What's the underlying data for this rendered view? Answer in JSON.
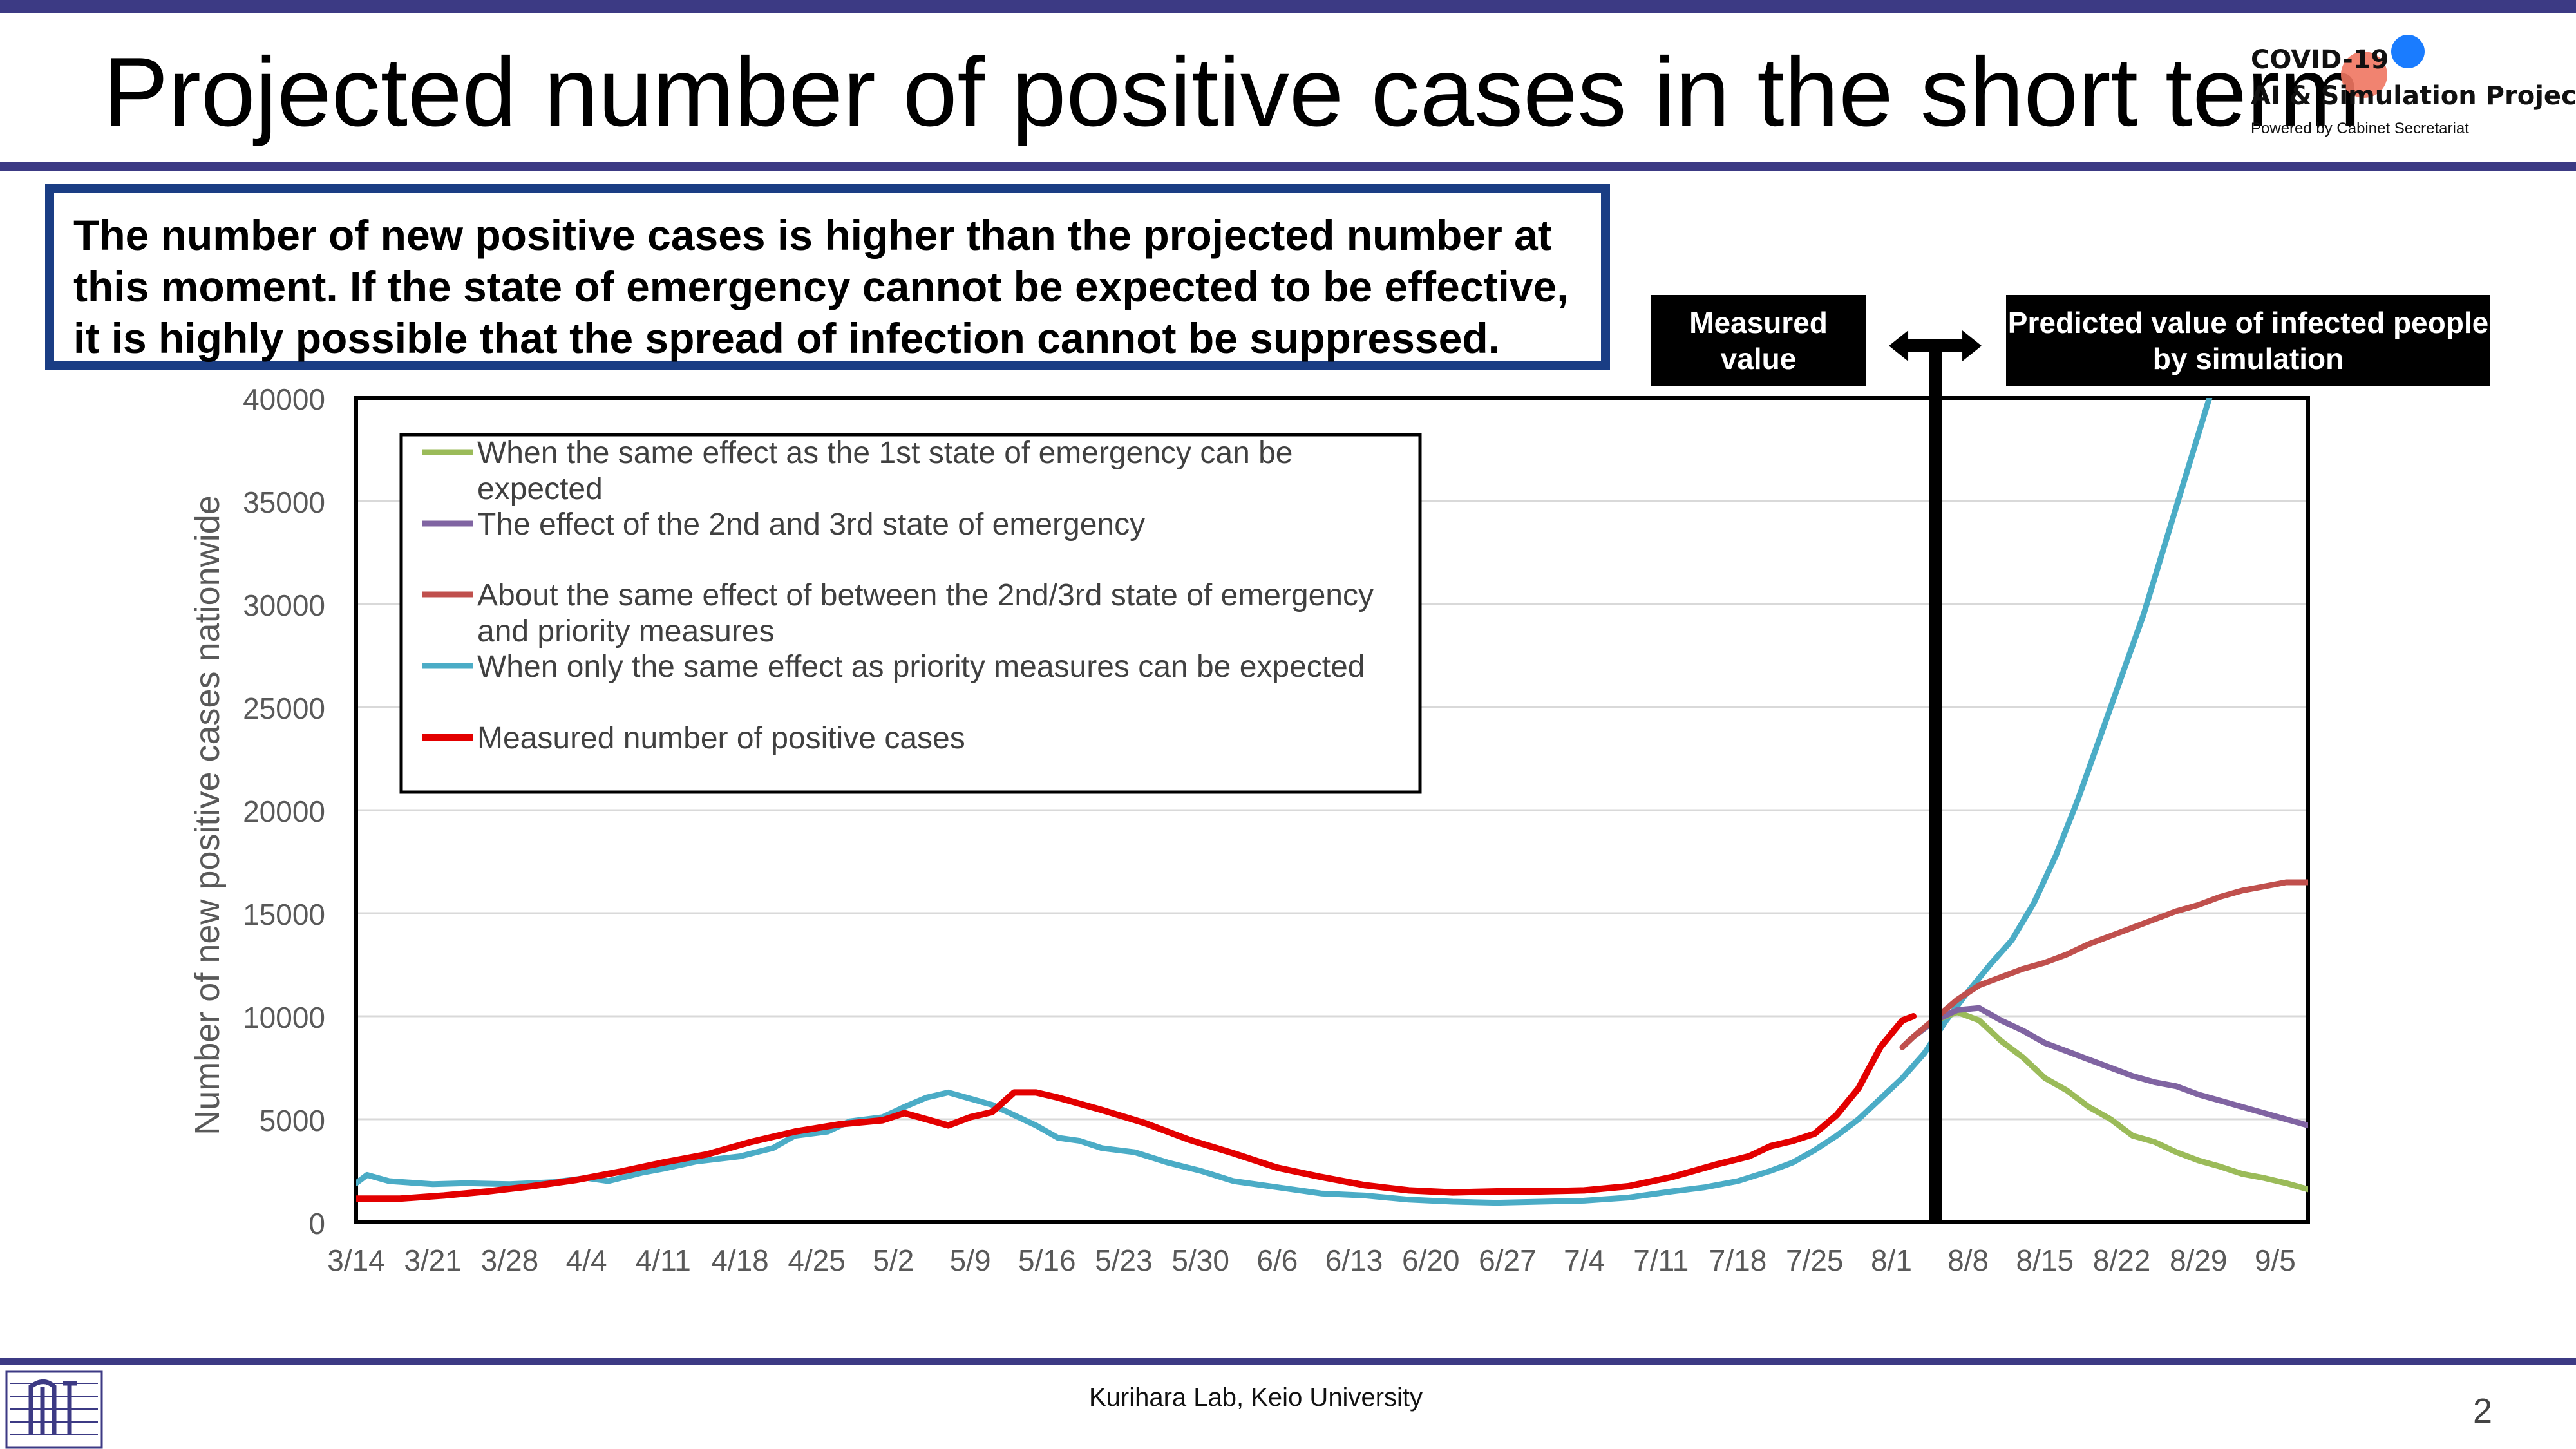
{
  "title": "Projected number of positive cases in the short term",
  "brand": {
    "line1": "COVID-19",
    "line2": "AI & Simulation Project",
    "line3": "Powered by Cabinet Secretariat"
  },
  "callout": "The number of new positive cases is higher than the projected number at this moment. If the state of emergency cannot be expected to be effective, it is highly possible that the spread of infection cannot be suppressed.",
  "measured_label": "Measured value",
  "predicted_label": "Predicted value of infected people by simulation",
  "footer": "Kurihara Lab, Keio University",
  "page_number": "2",
  "colors": {
    "title_rule": "#3c3a84",
    "callout_border": "#1a3d84",
    "green": "#9bbb59",
    "purple": "#8064a2",
    "brown": "#c0504d",
    "teal": "#4bacc6",
    "red": "#e30000"
  },
  "chart_data": {
    "type": "line",
    "xlabel": "",
    "ylabel": "Number of new positive cases nationwide",
    "ylim": [
      0,
      40000
    ],
    "yticks": [
      "0",
      "5000",
      "10000",
      "15000",
      "20000",
      "25000",
      "30000",
      "35000",
      "40000"
    ],
    "xlim_days": [
      0,
      178
    ],
    "xticks": [
      "3/14",
      "3/21",
      "3/28",
      "4/4",
      "4/11",
      "4/18",
      "4/25",
      "5/2",
      "5/9",
      "5/16",
      "5/23",
      "5/30",
      "6/6",
      "6/13",
      "6/20",
      "6/27",
      "7/4",
      "7/11",
      "7/18",
      "7/25",
      "8/1",
      "8/8",
      "8/15",
      "8/22",
      "8/29",
      "9/5"
    ],
    "grid": true,
    "legend_position": "top-left",
    "divider_x": "8/5",
    "series": [
      {
        "name": "When the same effect as the 1st state of emergency can be expected",
        "color": "green",
        "points": [
          [
            "8/2",
            8500
          ],
          [
            "8/3",
            9000
          ],
          [
            "8/5",
            9800
          ],
          [
            "8/7",
            10200
          ],
          [
            "8/9",
            9800
          ],
          [
            "8/11",
            8800
          ],
          [
            "8/13",
            8000
          ],
          [
            "8/15",
            7000
          ],
          [
            "8/17",
            6400
          ],
          [
            "8/19",
            5600
          ],
          [
            "8/21",
            5000
          ],
          [
            "8/23",
            4200
          ],
          [
            "8/25",
            3900
          ],
          [
            "8/27",
            3400
          ],
          [
            "8/29",
            3000
          ],
          [
            "8/31",
            2700
          ],
          [
            "9/2",
            2350
          ],
          [
            "9/4",
            2150
          ],
          [
            "9/6",
            1900
          ],
          [
            "9/8",
            1600
          ]
        ]
      },
      {
        "name": "The effect of the 2nd and 3rd state of emergency",
        "color": "purple",
        "points": [
          [
            "8/2",
            8500
          ],
          [
            "8/3",
            9000
          ],
          [
            "8/5",
            9800
          ],
          [
            "8/7",
            10300
          ],
          [
            "8/9",
            10400
          ],
          [
            "8/11",
            9800
          ],
          [
            "8/13",
            9300
          ],
          [
            "8/15",
            8700
          ],
          [
            "8/17",
            8300
          ],
          [
            "8/19",
            7900
          ],
          [
            "8/21",
            7500
          ],
          [
            "8/23",
            7100
          ],
          [
            "8/25",
            6800
          ],
          [
            "8/27",
            6600
          ],
          [
            "8/29",
            6200
          ],
          [
            "8/31",
            5900
          ],
          [
            "9/2",
            5600
          ],
          [
            "9/4",
            5300
          ],
          [
            "9/6",
            5000
          ],
          [
            "9/8",
            4700
          ]
        ]
      },
      {
        "name": "About the same effect of between the 2nd/3rd state of emergency and priority measures",
        "color": "brown",
        "points": [
          [
            "8/2",
            8500
          ],
          [
            "8/3",
            9000
          ],
          [
            "8/5",
            9900
          ],
          [
            "8/7",
            10800
          ],
          [
            "8/9",
            11500
          ],
          [
            "8/11",
            11900
          ],
          [
            "8/13",
            12300
          ],
          [
            "8/15",
            12600
          ],
          [
            "8/17",
            13000
          ],
          [
            "8/19",
            13500
          ],
          [
            "8/21",
            13900
          ],
          [
            "8/23",
            14300
          ],
          [
            "8/25",
            14700
          ],
          [
            "8/27",
            15100
          ],
          [
            "8/29",
            15400
          ],
          [
            "8/31",
            15800
          ],
          [
            "9/2",
            16100
          ],
          [
            "9/4",
            16300
          ],
          [
            "9/6",
            16500
          ],
          [
            "9/8",
            16500
          ]
        ]
      },
      {
        "name": "When only the same effect as priority measures can be expected",
        "color": "teal",
        "points": [
          [
            "3/14",
            1900
          ],
          [
            "3/15",
            2300
          ],
          [
            "3/17",
            2000
          ],
          [
            "3/21",
            1850
          ],
          [
            "3/24",
            1900
          ],
          [
            "3/28",
            1850
          ],
          [
            "4/1",
            1950
          ],
          [
            "4/4",
            2150
          ],
          [
            "4/6",
            2000
          ],
          [
            "4/9",
            2400
          ],
          [
            "4/11",
            2600
          ],
          [
            "4/14",
            2950
          ],
          [
            "4/18",
            3200
          ],
          [
            "4/21",
            3600
          ],
          [
            "4/23",
            4200
          ],
          [
            "4/26",
            4400
          ],
          [
            "4/28",
            4900
          ],
          [
            "5/1",
            5100
          ],
          [
            "5/3",
            5600
          ],
          [
            "5/5",
            6050
          ],
          [
            "5/7",
            6300
          ],
          [
            "5/9",
            6000
          ],
          [
            "5/11",
            5700
          ],
          [
            "5/13",
            5200
          ],
          [
            "5/15",
            4700
          ],
          [
            "5/17",
            4100
          ],
          [
            "5/19",
            3950
          ],
          [
            "5/21",
            3600
          ],
          [
            "5/24",
            3400
          ],
          [
            "5/27",
            2900
          ],
          [
            "5/30",
            2500
          ],
          [
            "6/2",
            2000
          ],
          [
            "6/6",
            1700
          ],
          [
            "6/10",
            1400
          ],
          [
            "6/14",
            1300
          ],
          [
            "6/18",
            1100
          ],
          [
            "6/22",
            1000
          ],
          [
            "6/26",
            950
          ],
          [
            "6/30",
            1000
          ],
          [
            "7/4",
            1050
          ],
          [
            "7/8",
            1200
          ],
          [
            "7/12",
            1500
          ],
          [
            "7/15",
            1700
          ],
          [
            "7/18",
            2000
          ],
          [
            "7/21",
            2500
          ],
          [
            "7/23",
            2900
          ],
          [
            "7/25",
            3500
          ],
          [
            "7/27",
            4200
          ],
          [
            "7/29",
            5000
          ],
          [
            "7/31",
            6000
          ],
          [
            "8/2",
            7000
          ],
          [
            "8/4",
            8200
          ],
          [
            "8/6",
            9800
          ],
          [
            "8/8",
            11200
          ],
          [
            "8/10",
            12500
          ],
          [
            "8/12",
            13700
          ],
          [
            "8/14",
            15500
          ],
          [
            "8/16",
            17800
          ],
          [
            "8/18",
            20500
          ],
          [
            "8/20",
            23500
          ],
          [
            "8/22",
            26500
          ],
          [
            "8/24",
            29500
          ],
          [
            "8/26",
            33000
          ],
          [
            "8/28",
            36500
          ],
          [
            "8/30",
            40000
          ]
        ]
      },
      {
        "name": "Measured number of positive cases",
        "color": "red",
        "points": [
          [
            "3/14",
            1150
          ],
          [
            "3/18",
            1150
          ],
          [
            "3/22",
            1300
          ],
          [
            "3/26",
            1500
          ],
          [
            "3/30",
            1750
          ],
          [
            "4/3",
            2050
          ],
          [
            "4/7",
            2450
          ],
          [
            "4/11",
            2900
          ],
          [
            "4/15",
            3300
          ],
          [
            "4/19",
            3900
          ],
          [
            "4/23",
            4400
          ],
          [
            "4/27",
            4750
          ],
          [
            "5/1",
            4950
          ],
          [
            "5/3",
            5300
          ],
          [
            "5/5",
            5000
          ],
          [
            "5/7",
            4700
          ],
          [
            "5/9",
            5100
          ],
          [
            "5/11",
            5350
          ],
          [
            "5/13",
            6300
          ],
          [
            "5/15",
            6300
          ],
          [
            "5/17",
            6050
          ],
          [
            "5/21",
            5450
          ],
          [
            "5/25",
            4800
          ],
          [
            "5/29",
            4000
          ],
          [
            "6/2",
            3350
          ],
          [
            "6/6",
            2650
          ],
          [
            "6/10",
            2200
          ],
          [
            "6/14",
            1800
          ],
          [
            "6/18",
            1550
          ],
          [
            "6/22",
            1450
          ],
          [
            "6/26",
            1500
          ],
          [
            "6/30",
            1500
          ],
          [
            "7/4",
            1550
          ],
          [
            "7/8",
            1750
          ],
          [
            "7/12",
            2200
          ],
          [
            "7/16",
            2800
          ],
          [
            "7/19",
            3200
          ],
          [
            "7/21",
            3700
          ],
          [
            "7/23",
            3950
          ],
          [
            "7/25",
            4300
          ],
          [
            "7/27",
            5200
          ],
          [
            "7/29",
            6500
          ],
          [
            "7/31",
            8500
          ],
          [
            "8/2",
            9800
          ],
          [
            "8/3",
            10000
          ]
        ]
      }
    ]
  }
}
